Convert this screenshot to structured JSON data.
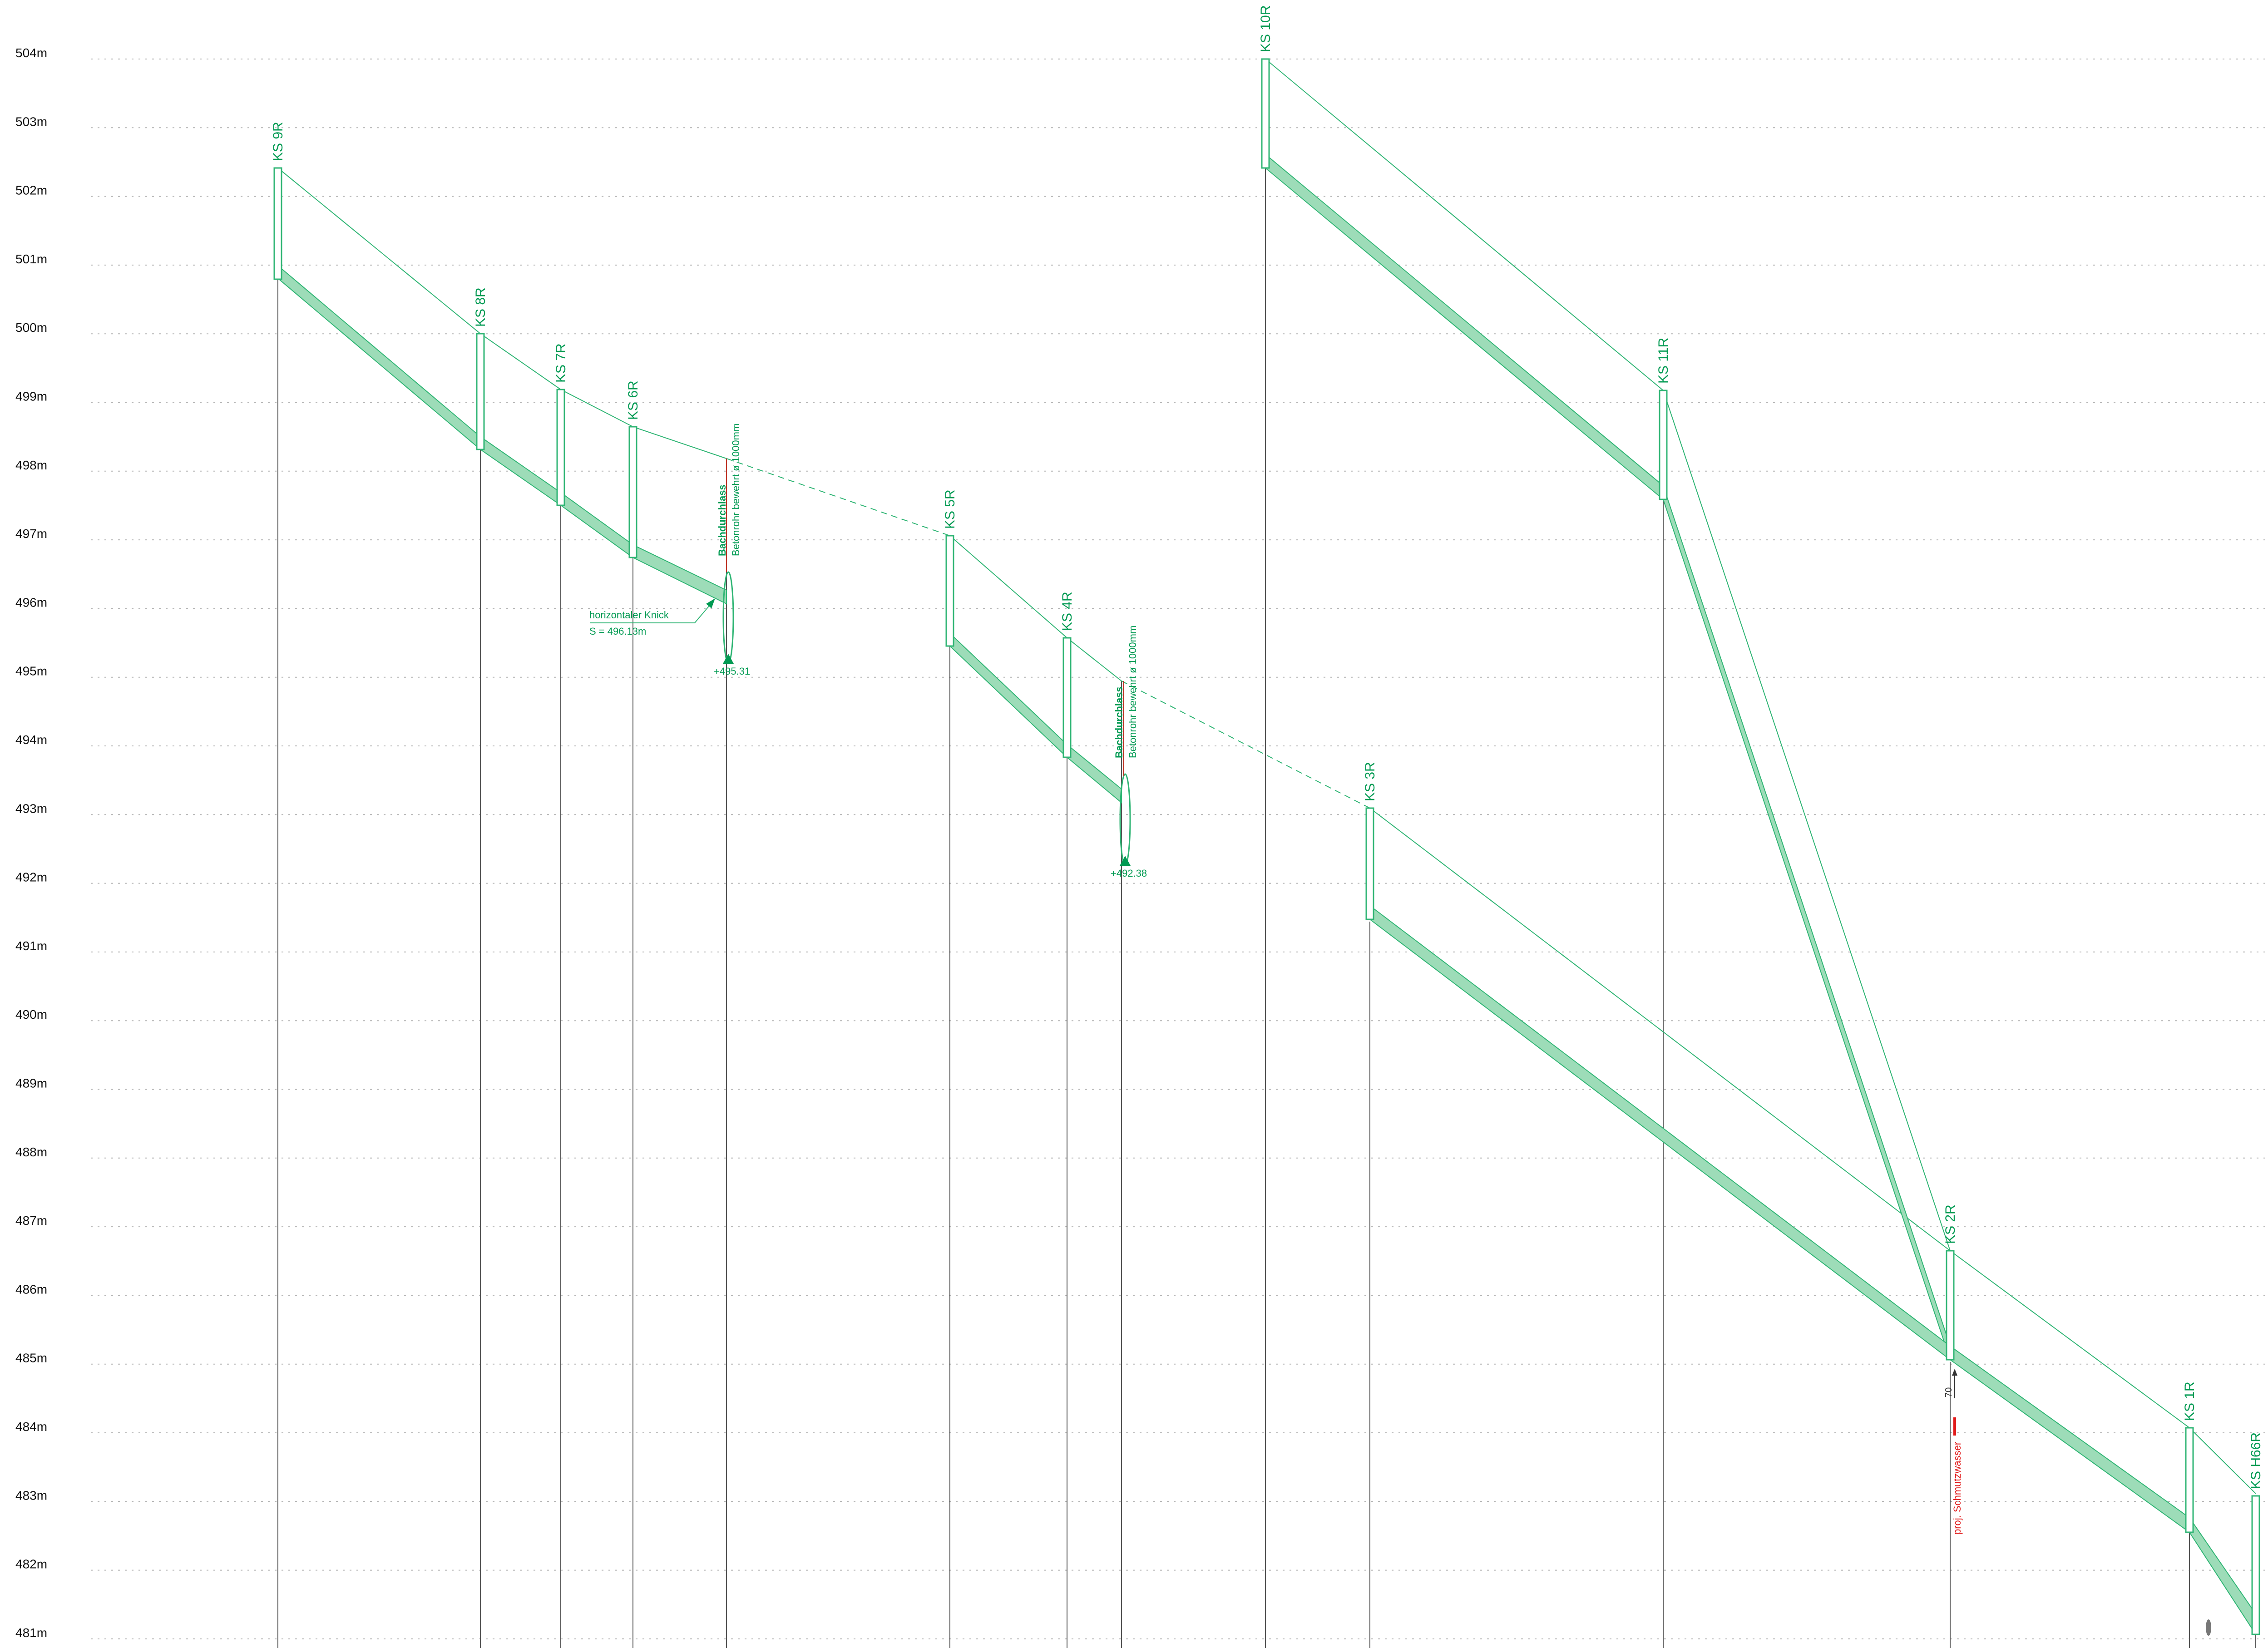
{
  "elevation_axis": {
    "unit": "m",
    "min": 481,
    "max": 504,
    "labels": [
      "504m",
      "503m",
      "502m",
      "501m",
      "500m",
      "499m",
      "498m",
      "497m",
      "496m",
      "495m",
      "494m",
      "493m",
      "492m",
      "491m",
      "490m",
      "489m",
      "488m",
      "487m",
      "486m",
      "485m",
      "484m",
      "483m",
      "482m",
      "481m"
    ]
  },
  "manholes": [
    {
      "id": "ks9r",
      "label": "KS 9R"
    },
    {
      "id": "ks8r",
      "label": "KS 8R"
    },
    {
      "id": "ks7r",
      "label": "KS 7R"
    },
    {
      "id": "ks6r",
      "label": "KS 6R"
    },
    {
      "id": "ks5r",
      "label": "KS 5R"
    },
    {
      "id": "ks4r",
      "label": "KS 4R"
    },
    {
      "id": "ks10r",
      "label": "KS 10R"
    },
    {
      "id": "ks3r",
      "label": "KS 3R"
    },
    {
      "id": "ks11r",
      "label": "KS 11R"
    },
    {
      "id": "ks2r",
      "label": "KS 2R"
    },
    {
      "id": "ks1r",
      "label": "KS 1R"
    },
    {
      "id": "ksh66r",
      "label": "KS H66R"
    }
  ],
  "culverts": [
    {
      "title": "Bachdurchlass",
      "subtitle": "Betonrohr bewehrt ø 1000mm",
      "invert": "+495.31"
    },
    {
      "title": "Bachdurchlass",
      "subtitle": "Betonrohr bewehrt ø 1000mm",
      "invert": "+492.38"
    }
  ],
  "annotations": {
    "knick_title": "horizontaler Knick",
    "knick_value": "S = 496.13m",
    "sewer_label": "proj. Schmutzwasser",
    "sewer_dim": "70"
  },
  "colors": {
    "pipe_fill": "#9ddcb8",
    "pipe_stroke": "#2fb574",
    "label_green": "#009a52",
    "sewer_red": "#e11b1b",
    "grid": "#b5b5b5"
  }
}
